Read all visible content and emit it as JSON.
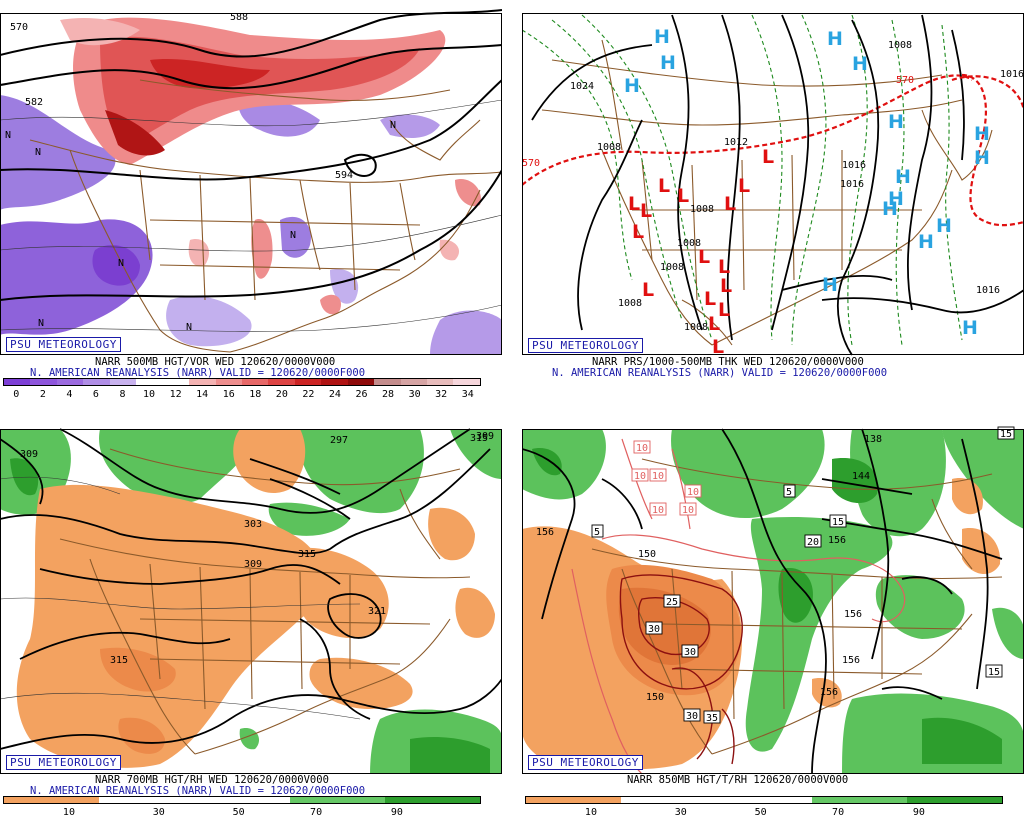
{
  "psu_label": "PSU METEOROLOGY",
  "reanalysis_line": "N. AMERICAN REANALYSIS (NARR) VALID = 120620/0000F000",
  "panels": {
    "vort500": {
      "title": "NARR 500MB HGT/VOR WED 120620/0000V000",
      "scale_ticks": [
        "0",
        "2",
        "4",
        "6",
        "8",
        "10",
        "12",
        "14",
        "16",
        "18",
        "20",
        "22",
        "24",
        "26",
        "28",
        "30",
        "32",
        "34"
      ],
      "scale_colors": [
        "#7d3fd6",
        "#8e55dc",
        "#9c6be0",
        "#b08ee6",
        "#c8b2ee",
        "#ffffff",
        "#ffffff",
        "#f4b3b3",
        "#ee8e8e",
        "#e76868",
        "#de4444",
        "#cc2424",
        "#b01313",
        "#8f0b0b",
        "#c48c8c",
        "#d6a4a4",
        "#e8bcbc",
        "#f6d6dc"
      ],
      "contour_labels": [
        "570",
        "582",
        "594",
        "588"
      ],
      "n_markers": [
        "N",
        "N",
        "N",
        "N",
        "N",
        "N",
        "N"
      ]
    },
    "thickness": {
      "title": "NARR PRS/1000-500MB THK WED 120620/0000V000",
      "contour_labels": [
        "1024",
        "1008",
        "1008",
        "1008",
        "1008",
        "1008",
        "1008",
        "1016",
        "1016",
        "1016",
        "1016",
        "570",
        "570",
        "1012",
        "1008"
      ],
      "highs": [
        "H",
        "H",
        "H",
        "H",
        "H",
        "H",
        "H",
        "H",
        "H",
        "H",
        "H",
        "H",
        "H",
        "H",
        "H"
      ],
      "lows": [
        "L",
        "L",
        "L",
        "L",
        "L",
        "L",
        "L",
        "L",
        "L",
        "L",
        "L",
        "L",
        "L",
        "L",
        "L",
        "L"
      ]
    },
    "rh700": {
      "title": "NARR 700MB HGT/RH WED 120620/0000V000",
      "contour_labels": [
        "309",
        "297",
        "309",
        "303",
        "309",
        "315",
        "315",
        "321",
        "315"
      ],
      "scale_ticks": [
        "10",
        "30",
        "50",
        "70",
        "90"
      ],
      "scale_colors": [
        "#f3a260",
        "#ffffff",
        "#ffffff",
        "#66c866",
        "#2d9e2d"
      ]
    },
    "t850": {
      "title": "NARR 850MB HGT/T/RH 120620/0000V000",
      "contour_labels": [
        "156",
        "150",
        "156",
        "156",
        "150",
        "156",
        "138",
        "144",
        "156"
      ],
      "temp_boxes": [
        "10",
        "10",
        "10",
        "10",
        "10",
        "10",
        "5",
        "5",
        "15",
        "15",
        "20",
        "25",
        "30",
        "30",
        "30",
        "35",
        "15"
      ],
      "scale_ticks": [
        "10",
        "30",
        "50",
        "70",
        "90"
      ],
      "scale_colors": [
        "#f3a260",
        "#ffffff",
        "#ffffff",
        "#66c866",
        "#2d9e2d"
      ]
    }
  }
}
